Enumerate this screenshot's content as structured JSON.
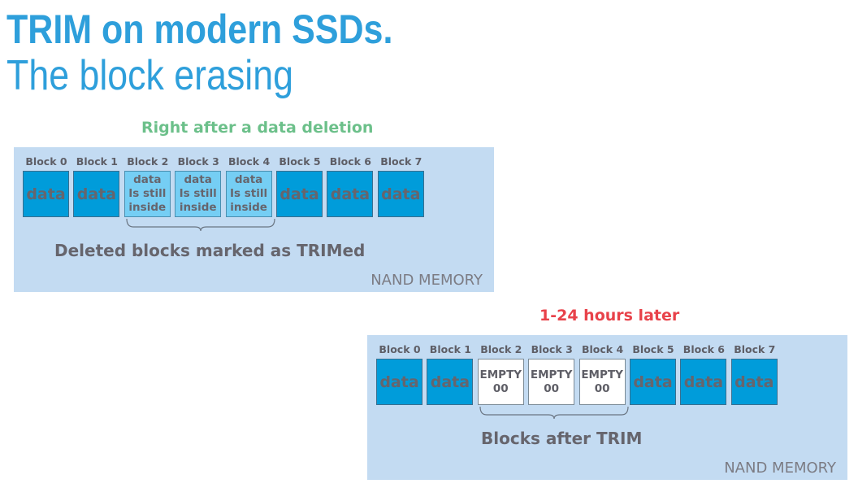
{
  "title": {
    "line1": "TRIM on modern SSDs.",
    "line2": "The block erasing"
  },
  "colors": {
    "title": "#2e9fdb",
    "panel_bg": "#c3dbf2",
    "data_block": "#009cda",
    "trimmed_block": "#75cef4",
    "empty_block": "#ffffff",
    "caption_before": "#6cc08a",
    "caption_after": "#e8424a",
    "text": "#66656d"
  },
  "before": {
    "caption": "Right after a data deletion",
    "blocks": [
      {
        "label": "Block 0",
        "state": "full",
        "lines": [
          "data"
        ]
      },
      {
        "label": "Block 1",
        "state": "full",
        "lines": [
          "data"
        ]
      },
      {
        "label": "Block 2",
        "state": "trim",
        "lines": [
          "data",
          "Is still",
          "inside"
        ]
      },
      {
        "label": "Block 3",
        "state": "trim",
        "lines": [
          "data",
          "Is still",
          "inside"
        ]
      },
      {
        "label": "Block 4",
        "state": "trim",
        "lines": [
          "data",
          "Is still",
          "inside"
        ]
      },
      {
        "label": "Block 5",
        "state": "full",
        "lines": [
          "data"
        ]
      },
      {
        "label": "Block 6",
        "state": "full",
        "lines": [
          "data"
        ]
      },
      {
        "label": "Block 7",
        "state": "full",
        "lines": [
          "data"
        ]
      }
    ],
    "brace_label": "Deleted blocks marked as TRIMed",
    "memory_label": "NAND MEMORY"
  },
  "after": {
    "caption": "1-24 hours later",
    "blocks": [
      {
        "label": "Block 0",
        "state": "full",
        "lines": [
          "data"
        ]
      },
      {
        "label": "Block 1",
        "state": "full",
        "lines": [
          "data"
        ]
      },
      {
        "label": "Block 2",
        "state": "empty",
        "lines": [
          "EMPTY",
          "00"
        ]
      },
      {
        "label": "Block 3",
        "state": "empty",
        "lines": [
          "EMPTY",
          "00"
        ]
      },
      {
        "label": "Block 4",
        "state": "empty",
        "lines": [
          "EMPTY",
          "00"
        ]
      },
      {
        "label": "Block 5",
        "state": "full",
        "lines": [
          "data"
        ]
      },
      {
        "label": "Block 6",
        "state": "full",
        "lines": [
          "data"
        ]
      },
      {
        "label": "Block 7",
        "state": "full",
        "lines": [
          "data"
        ]
      }
    ],
    "brace_label": "Blocks after TRIM",
    "memory_label": "NAND MEMORY"
  }
}
